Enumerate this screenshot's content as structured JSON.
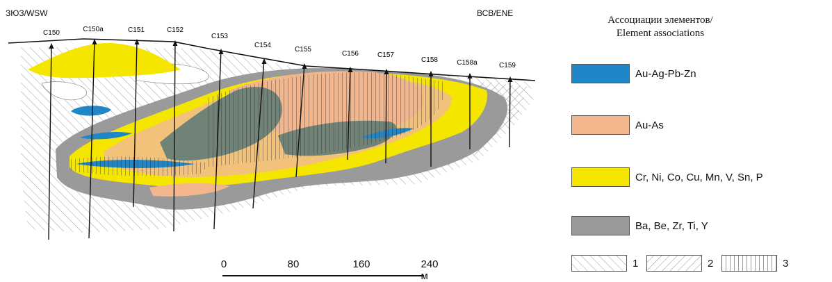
{
  "orientation": {
    "left": "ЗЮЗ/WSW",
    "right": "ВСВ/ENE"
  },
  "boreholes": [
    "C150",
    "C150a",
    "C151",
    "C152",
    "C153",
    "C154",
    "C155",
    "C156",
    "C157",
    "C158",
    "C158a",
    "C159"
  ],
  "scale": {
    "ticks": [
      "0",
      "80",
      "160",
      "240 м"
    ]
  },
  "legend": {
    "title_line1": "Ассоциации элементов/",
    "title_line2": "Element associations",
    "items": [
      {
        "label": "Au-Ag-Pb-Zn",
        "color": "#1f86c8"
      },
      {
        "label": "Au-As",
        "color": "#f2b58c"
      },
      {
        "label": "Cr, Ni, Co, Cu, Mn, V, Sn, P",
        "color": "#f5e600"
      },
      {
        "label": "Ba, Be, Zr, Ti, Y",
        "color": "#9a9a9a"
      }
    ],
    "patterns": [
      "1",
      "2",
      "3"
    ]
  },
  "colors": {
    "orange_zone": "#f2c27a",
    "dark_grey_zone": "#6f8377"
  }
}
